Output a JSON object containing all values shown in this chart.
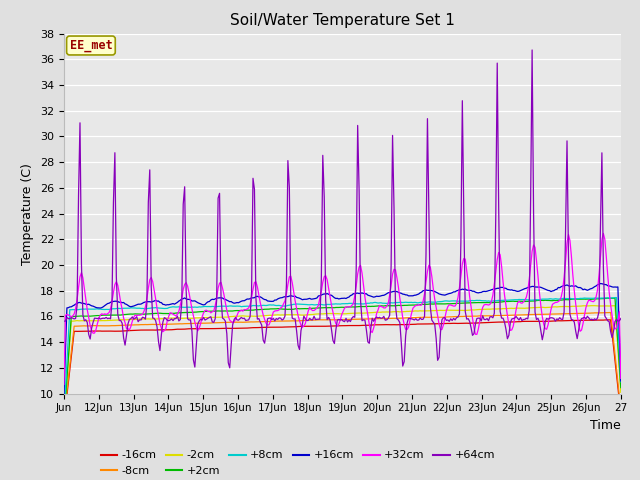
{
  "title": "Soil/Water Temperature Set 1",
  "xlabel": "Time",
  "ylabel": "Temperature (C)",
  "ylim": [
    10,
    38
  ],
  "xlim": [
    0,
    16
  ],
  "xtick_labels": [
    "Jun",
    "12Jun",
    "13Jun",
    "14Jun",
    "15Jun",
    "16Jun",
    "17Jun",
    "18Jun",
    "19Jun",
    "20Jun",
    "21Jun",
    "22Jun",
    "23Jun",
    "24Jun",
    "25Jun",
    "26Jun",
    "27"
  ],
  "background_color": "#e0e0e0",
  "plot_bg_color": "#e8e8e8",
  "series_colors": {
    "-16cm": "#dd0000",
    "-8cm": "#ff8800",
    "-2cm": "#dddd00",
    "+2cm": "#00bb00",
    "+8cm": "#00cccc",
    "+16cm": "#0000cc",
    "+32cm": "#ff00ff",
    "+64cm": "#8800bb"
  },
  "yticks": [
    10,
    12,
    14,
    16,
    18,
    20,
    22,
    24,
    26,
    28,
    30,
    32,
    34,
    36,
    38
  ]
}
